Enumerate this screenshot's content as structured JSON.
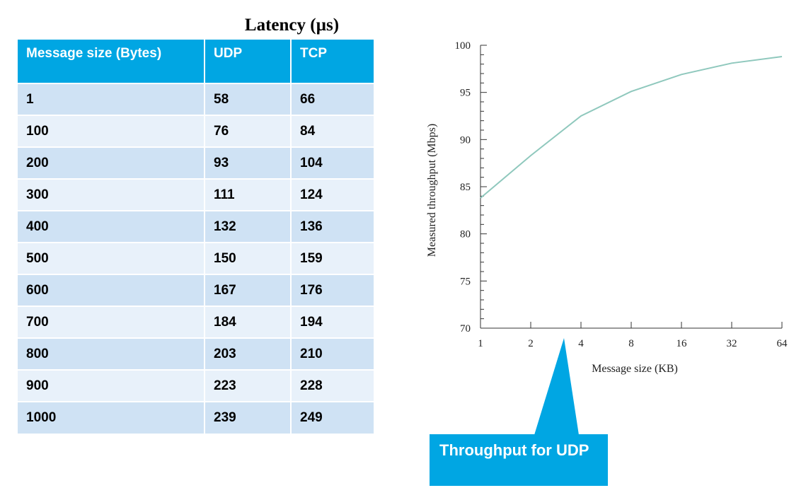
{
  "table": {
    "title": "Latency (µs)",
    "headers": [
      "Message size (Bytes)",
      "UDP",
      "TCP"
    ],
    "rows": [
      [
        "1",
        "58",
        "66"
      ],
      [
        "100",
        "76",
        "84"
      ],
      [
        "200",
        "93",
        "104"
      ],
      [
        "300",
        "111",
        "124"
      ],
      [
        "400",
        "132",
        "136"
      ],
      [
        "500",
        "150",
        "159"
      ],
      [
        "600",
        "167",
        "176"
      ],
      [
        "700",
        "184",
        "194"
      ],
      [
        "800",
        "203",
        "210"
      ],
      [
        "900",
        "223",
        "228"
      ],
      [
        "1000",
        "239",
        "249"
      ]
    ]
  },
  "chart_data": {
    "type": "line",
    "title": "",
    "xlabel": "Message size (KB)",
    "ylabel": "Measured throughput (Mbps)",
    "x_scale": "log2",
    "x": [
      1,
      2,
      4,
      8,
      16,
      32,
      64
    ],
    "x_tick_labels": [
      "1",
      "2",
      "4",
      "8",
      "16",
      "32",
      "64"
    ],
    "y_ticks": [
      70,
      75,
      80,
      85,
      90,
      95,
      100
    ],
    "ylim": [
      70,
      100
    ],
    "grid": false,
    "series": [
      {
        "values": [
          83.8,
          88.3,
          92.5,
          95.1,
          96.9,
          98.1,
          98.8
        ],
        "color": "#8fc8bd"
      }
    ]
  },
  "callout": {
    "text": "Throughput for UDP",
    "color": "#00a6e3"
  }
}
